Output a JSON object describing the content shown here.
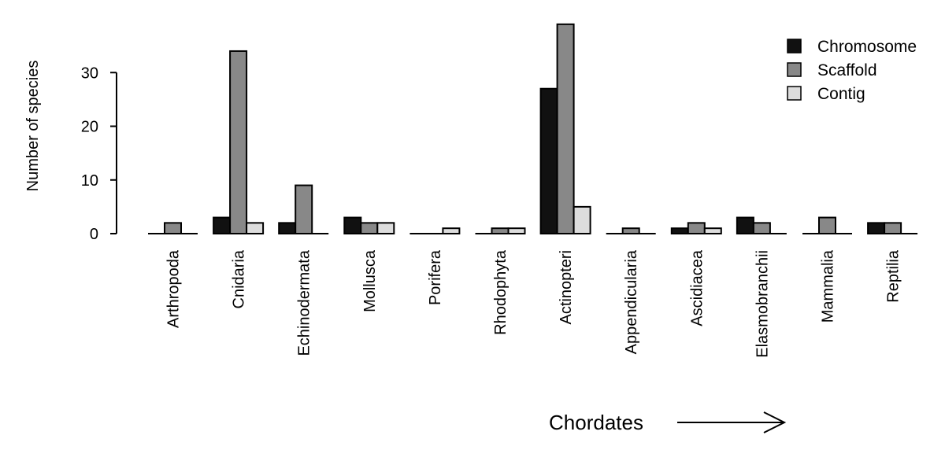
{
  "chart_data": {
    "type": "bar",
    "title": "",
    "xlabel": "",
    "ylabel": "Number of species",
    "ylim": [
      0,
      40
    ],
    "yticks": [
      0,
      10,
      20,
      30
    ],
    "grid": false,
    "legend_position": "top-right",
    "categories": [
      "Arthropoda",
      "Cnidaria",
      "Echinodermata",
      "Mollusca",
      "Porifera",
      "Rhodophyta",
      "Actinopteri",
      "Appendicularia",
      "Ascidiacea",
      "Elasmobranchii",
      "Mammalia",
      "Reptilia"
    ],
    "series": [
      {
        "name": "Chromosome",
        "color": "#111111",
        "values": [
          0,
          3,
          2,
          3,
          0,
          0,
          27,
          0,
          1,
          3,
          0,
          2
        ]
      },
      {
        "name": "Scaffold",
        "color": "#888888",
        "values": [
          2,
          34,
          9,
          2,
          0,
          1,
          39,
          1,
          2,
          2,
          3,
          2
        ]
      },
      {
        "name": "Contig",
        "color": "#dddddd",
        "values": [
          0,
          2,
          0,
          2,
          1,
          1,
          5,
          0,
          1,
          0,
          0,
          0
        ]
      }
    ],
    "annotation": {
      "text": "Chordates"
    }
  }
}
